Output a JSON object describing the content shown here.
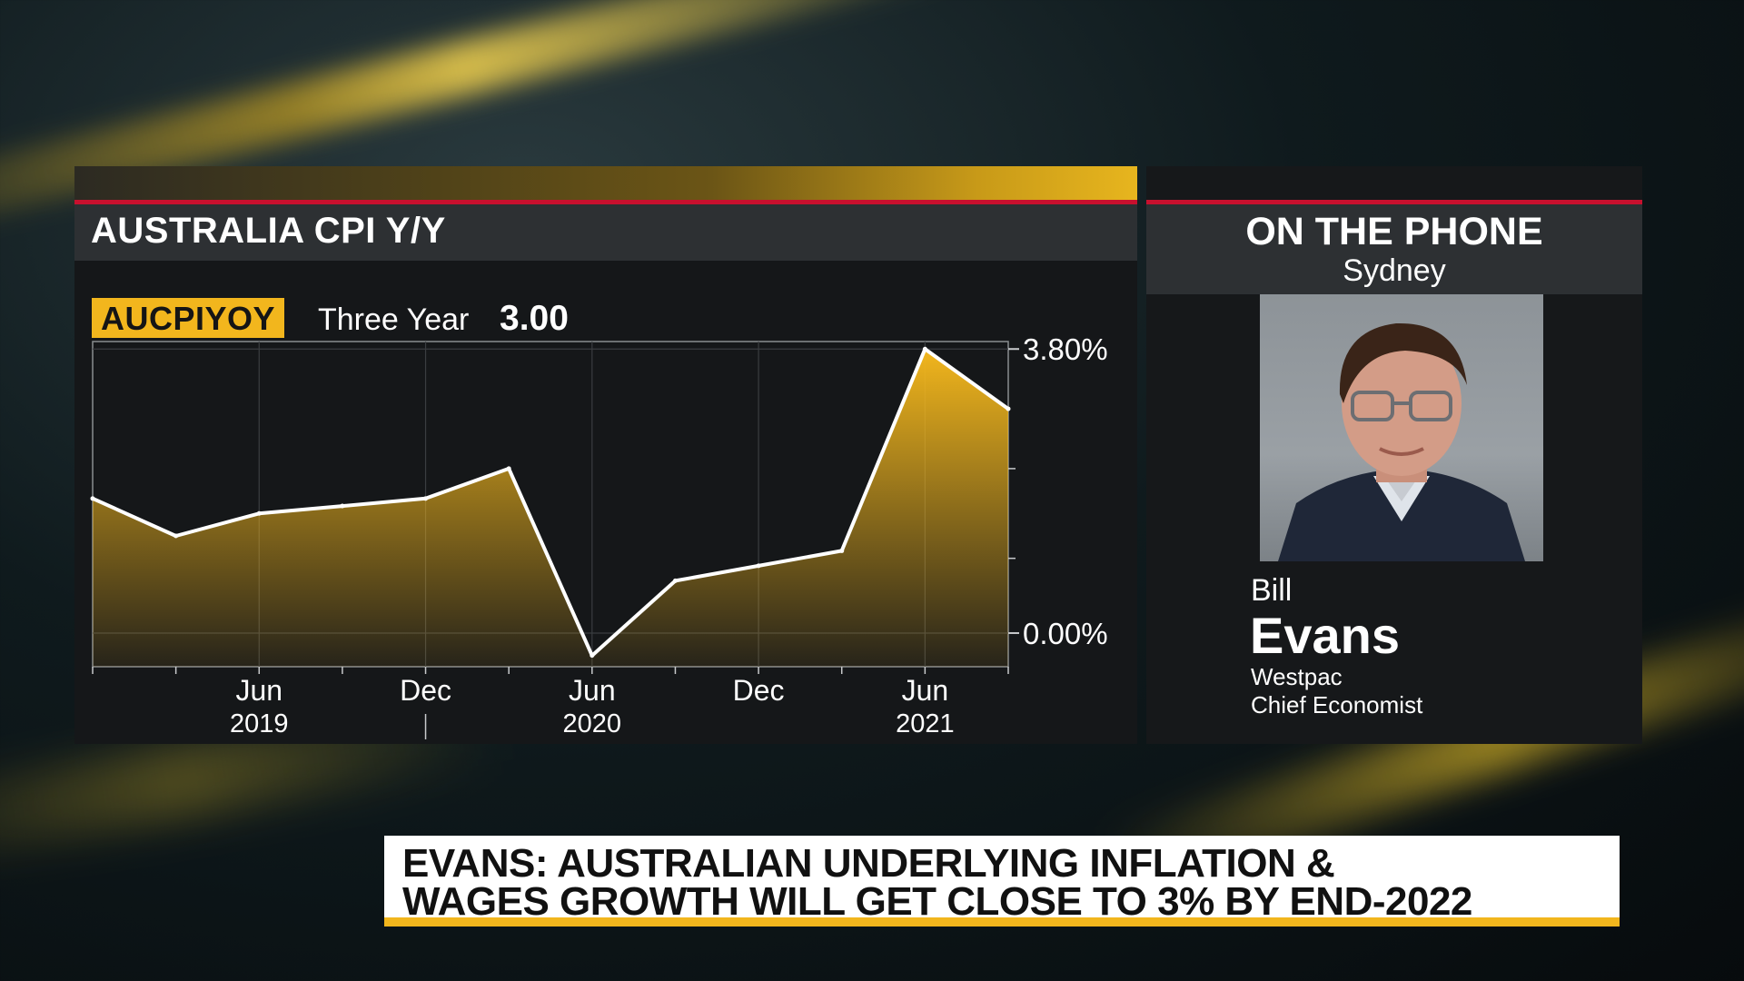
{
  "chart_panel": {
    "title": "AUSTRALIA CPI Y/Y",
    "ticker": "AUCPIYOY",
    "range_label": "Three Year",
    "range_value": "3.00"
  },
  "phone_panel": {
    "title": "ON THE PHONE",
    "location": "Sydney",
    "guest_first_name": "Bill",
    "guest_last_name": "Evans",
    "guest_org": "Westpac",
    "guest_role": "Chief Economist"
  },
  "headline": {
    "line1": "EVANS: AUSTRALIAN UNDERLYING INFLATION &",
    "line2": "WAGES GROWTH WILL GET CLOSE TO 3% BY END-2022"
  },
  "colors": {
    "accent_yellow": "#f2b61d",
    "accent_red": "#c8102e",
    "panel_dark": "#151719",
    "header_gray": "#2d3033"
  },
  "chart_data": {
    "type": "area",
    "title": "AUSTRALIA CPI Y/Y",
    "x": [
      "2018-12",
      "2019-03",
      "2019-06",
      "2019-09",
      "2019-12",
      "2020-03",
      "2020-06",
      "2020-09",
      "2020-12",
      "2021-03",
      "2021-06",
      "2021-09"
    ],
    "values": [
      1.8,
      1.3,
      1.6,
      1.7,
      1.8,
      2.2,
      -0.3,
      0.7,
      0.9,
      1.1,
      3.8,
      3.0
    ],
    "y_tick_labels": [
      "3.80%",
      "0.00%"
    ],
    "y_ticks": [
      3.8,
      0.0
    ],
    "ylim": [
      -0.45,
      3.9
    ],
    "x_tick_labels": [
      {
        "month": "Jun",
        "year": "2019",
        "x": "2019-06"
      },
      {
        "month": "Dec",
        "year": "",
        "x": "2019-12"
      },
      {
        "month": "Jun",
        "year": "2020",
        "x": "2020-06"
      },
      {
        "month": "Dec",
        "year": "",
        "x": "2020-12"
      },
      {
        "month": "Jun",
        "year": "2021",
        "x": "2021-06"
      }
    ],
    "grid": true,
    "fill_color": "#f2b61d",
    "line_color": "#ffffff"
  }
}
